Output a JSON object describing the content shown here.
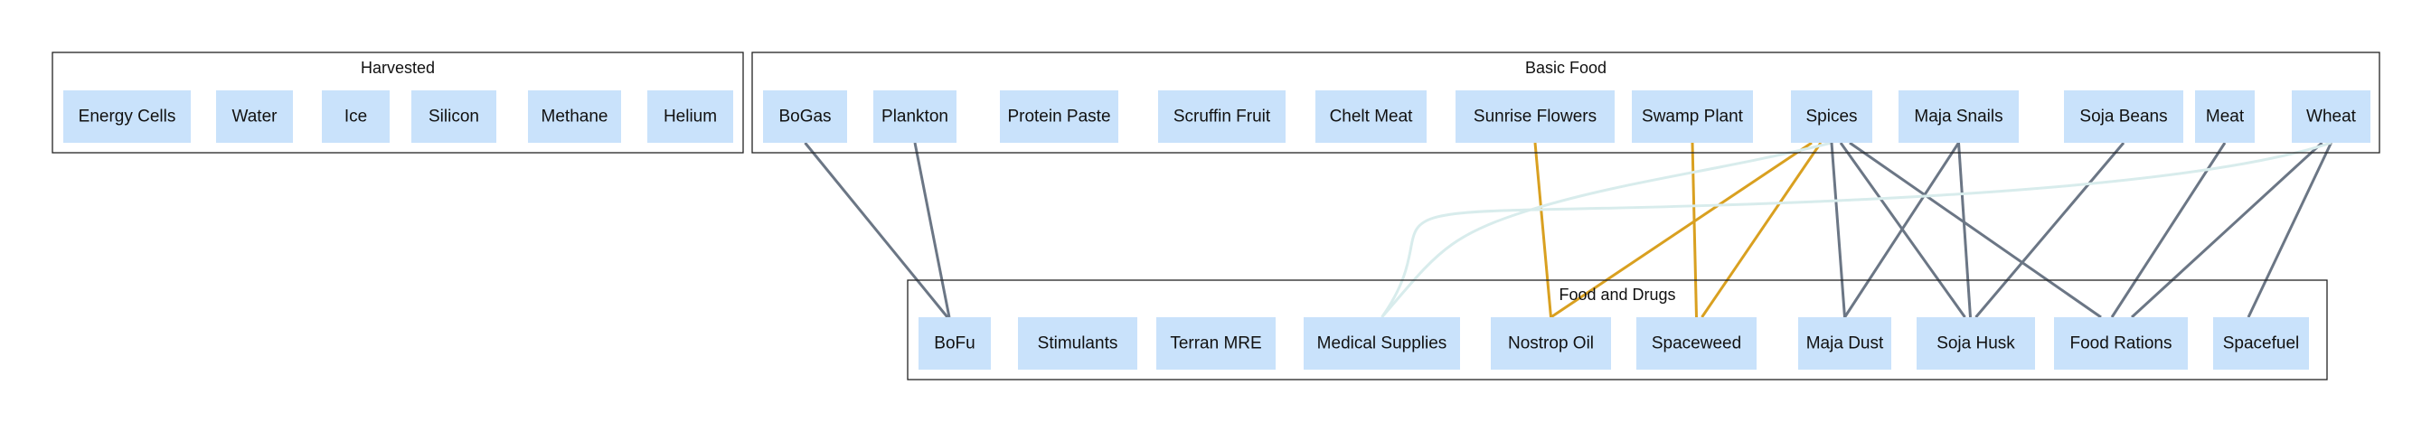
{
  "colors": {
    "node_fill": "#c9e2fb",
    "edge_default": "#6b7685",
    "edge_highlight": "#d9a020",
    "edge_faint": "#d8ecec"
  },
  "clusters": [
    {
      "id": "harvested",
      "title": "Harvested",
      "nodes": [
        "Energy Cells",
        "Water",
        "Ice",
        "Silicon",
        "Methane",
        "Helium"
      ]
    },
    {
      "id": "basic",
      "title": "Basic Food",
      "nodes": [
        "BoGas",
        "Plankton",
        "Protein Paste",
        "Scruffin Fruit",
        "Chelt Meat",
        "Sunrise Flowers",
        "Swamp Plant",
        "Spices",
        "Maja Snails",
        "Soja Beans",
        "Meat",
        "Wheat"
      ]
    },
    {
      "id": "fooddrugs",
      "title": "Food and Drugs",
      "nodes": [
        "BoFu",
        "Stimulants",
        "Terran MRE",
        "Medical Supplies",
        "Nostrop Oil",
        "Spaceweed",
        "Maja Dust",
        "Soja Husk",
        "Food Rations",
        "Spacefuel"
      ]
    }
  ],
  "edges": [
    {
      "from": "BoGas",
      "to": "BoFu",
      "style": "default"
    },
    {
      "from": "Plankton",
      "to": "BoFu",
      "style": "default"
    },
    {
      "from": "Sunrise Flowers",
      "to": "Nostrop Oil",
      "style": "highlight"
    },
    {
      "from": "Swamp Plant",
      "to": "Spaceweed",
      "style": "highlight"
    },
    {
      "from": "Spices",
      "to": "Nostrop Oil",
      "style": "highlight"
    },
    {
      "from": "Spices",
      "to": "Spaceweed",
      "style": "highlight"
    },
    {
      "from": "Spices",
      "to": "Medical Supplies",
      "style": "faint"
    },
    {
      "from": "Spices",
      "to": "Maja Dust",
      "style": "default"
    },
    {
      "from": "Spices",
      "to": "Soja Husk",
      "style": "default"
    },
    {
      "from": "Spices",
      "to": "Food Rations",
      "style": "default"
    },
    {
      "from": "Maja Snails",
      "to": "Maja Dust",
      "style": "default"
    },
    {
      "from": "Maja Snails",
      "to": "Soja Husk",
      "style": "default"
    },
    {
      "from": "Soja Beans",
      "to": "Soja Husk",
      "style": "default"
    },
    {
      "from": "Meat",
      "to": "Food Rations",
      "style": "default"
    },
    {
      "from": "Wheat",
      "to": "Food Rations",
      "style": "default"
    },
    {
      "from": "Wheat",
      "to": "Spacefuel",
      "style": "default"
    },
    {
      "from": "Wheat",
      "to": "Medical Supplies",
      "style": "faint"
    }
  ]
}
